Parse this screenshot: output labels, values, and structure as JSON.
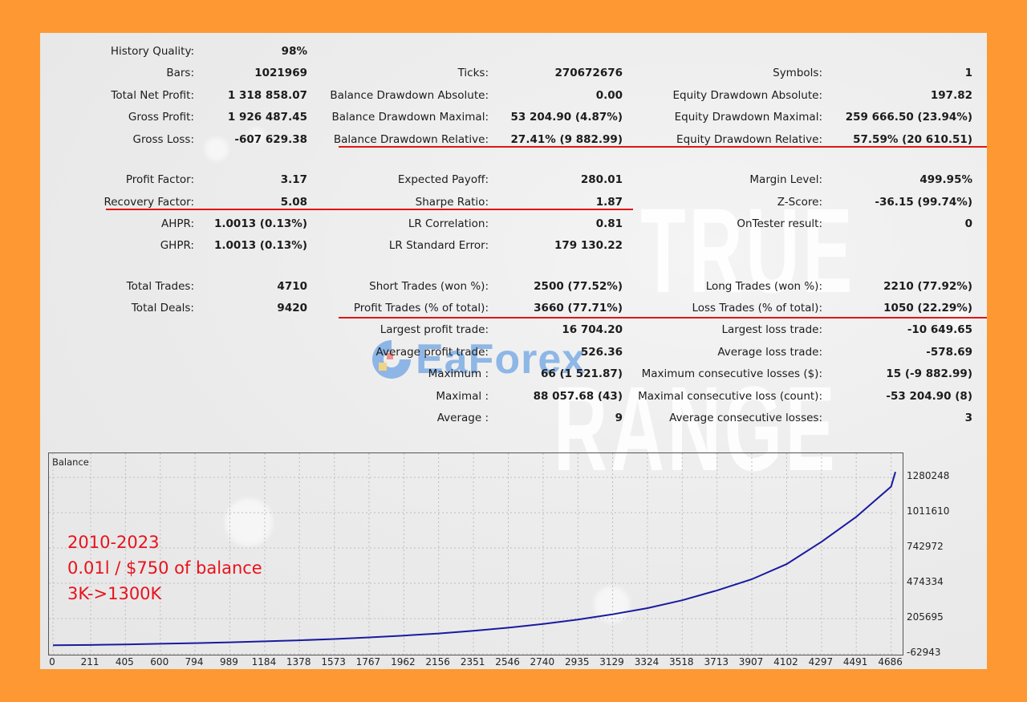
{
  "report": {
    "col1": [
      {
        "label": "History Quality:",
        "value": "98%"
      },
      {
        "label": "Bars:",
        "value": "1021969"
      },
      {
        "label": "Total Net Profit:",
        "value": "1 318 858.07"
      },
      {
        "label": "Gross Profit:",
        "value": "1 926 487.45"
      },
      {
        "label": "Gross Loss:",
        "value": "-607 629.38"
      },
      {
        "label": "Profit Factor:",
        "value": "3.17"
      },
      {
        "label": "Recovery Factor:",
        "value": "5.08"
      },
      {
        "label": "AHPR:",
        "value": "1.0013 (0.13%)"
      },
      {
        "label": "GHPR:",
        "value": "1.0013 (0.13%)"
      },
      {
        "label": "Total Trades:",
        "value": "4710"
      },
      {
        "label": "Total Deals:",
        "value": "9420"
      }
    ],
    "col2": [
      {
        "label": "Ticks:",
        "value": "270672676"
      },
      {
        "label": "Balance Drawdown Absolute:",
        "value": "0.00"
      },
      {
        "label": "Balance Drawdown Maximal:",
        "value": "53 204.90 (4.87%)"
      },
      {
        "label": "Balance Drawdown Relative:",
        "value": "27.41% (9 882.99)"
      },
      {
        "label": "Expected Payoff:",
        "value": "280.01"
      },
      {
        "label": "Sharpe Ratio:",
        "value": "1.87"
      },
      {
        "label": "LR Correlation:",
        "value": "0.81"
      },
      {
        "label": "LR Standard Error:",
        "value": "179 130.22"
      },
      {
        "label": "Short Trades (won %):",
        "value": "2500 (77.52%)"
      },
      {
        "label": "Profit Trades (% of total):",
        "value": "3660 (77.71%)"
      },
      {
        "label": "Largest profit trade:",
        "value": "16 704.20"
      },
      {
        "label": "Average profit trade:",
        "value": "526.36"
      },
      {
        "label": "Maximum :",
        "value": "66 (1 521.87)"
      },
      {
        "label": "Maximal :",
        "value": "88 057.68 (43)"
      },
      {
        "label": "Average :",
        "value": "9"
      }
    ],
    "col3": [
      {
        "label": "Symbols:",
        "value": "1"
      },
      {
        "label": "Equity Drawdown Absolute:",
        "value": "197.82"
      },
      {
        "label": "Equity Drawdown Maximal:",
        "value": "259 666.50 (23.94%)"
      },
      {
        "label": "Equity Drawdown Relative:",
        "value": "57.59% (20 610.51)"
      },
      {
        "label": "Margin Level:",
        "value": "499.95%"
      },
      {
        "label": "Z-Score:",
        "value": "-36.15 (99.74%)"
      },
      {
        "label": "OnTester result:",
        "value": "0"
      },
      {
        "label": "Long Trades (won %):",
        "value": "2210 (77.92%)"
      },
      {
        "label": "Loss Trades (% of total):",
        "value": "1050 (22.29%)"
      },
      {
        "label": "Largest loss trade:",
        "value": "-10 649.65"
      },
      {
        "label": "Average loss trade:",
        "value": "-578.69"
      },
      {
        "label": "Maximum consecutive losses ($):",
        "value": "15 (-9 882.99)"
      },
      {
        "label": "Maximal consecutive loss (count):",
        "value": "-53 204.90 (8)"
      },
      {
        "label": "Average consecutive losses:",
        "value": "3"
      }
    ]
  },
  "watermark": {
    "line1": "TRUE",
    "line2": "RANGE",
    "brand": "EaForex"
  },
  "annotations": {
    "line1": "2010-2023",
    "line2": "0.01l / $750 of balance",
    "line3": "3K->1300K",
    "color": "#e8121c"
  },
  "colors": {
    "background": "#fd9833",
    "highlight_line": "#e01515",
    "balance_line": "#1a1aa0"
  },
  "chart_data": {
    "type": "line",
    "title": "Balance",
    "xlabel": "",
    "ylabel": "",
    "x_ticks": [
      0,
      211,
      405,
      600,
      794,
      989,
      1184,
      1378,
      1573,
      1767,
      1962,
      2156,
      2351,
      2546,
      2740,
      2935,
      3129,
      3324,
      3518,
      3713,
      3907,
      4102,
      4297,
      4491,
      4686
    ],
    "y_ticks": [
      -62943,
      205695,
      474334,
      742972,
      1011610,
      1280248
    ],
    "xlim": [
      0,
      4710
    ],
    "ylim": [
      -62943,
      1380000
    ],
    "grid": true,
    "legend": "none",
    "series": [
      {
        "name": "Balance",
        "x": [
          0,
          211,
          405,
          600,
          794,
          989,
          1184,
          1378,
          1573,
          1767,
          1962,
          2156,
          2351,
          2546,
          2740,
          2935,
          3129,
          3324,
          3518,
          3713,
          3907,
          4102,
          4297,
          4491,
          4686,
          4710
        ],
        "y": [
          3000,
          5000,
          9000,
          14000,
          19000,
          25000,
          32000,
          40000,
          50000,
          62000,
          76000,
          92000,
          112000,
          136000,
          165000,
          198000,
          238000,
          285000,
          345000,
          420000,
          505000,
          620000,
          790000,
          980000,
          1210000,
          1321858
        ]
      }
    ]
  }
}
